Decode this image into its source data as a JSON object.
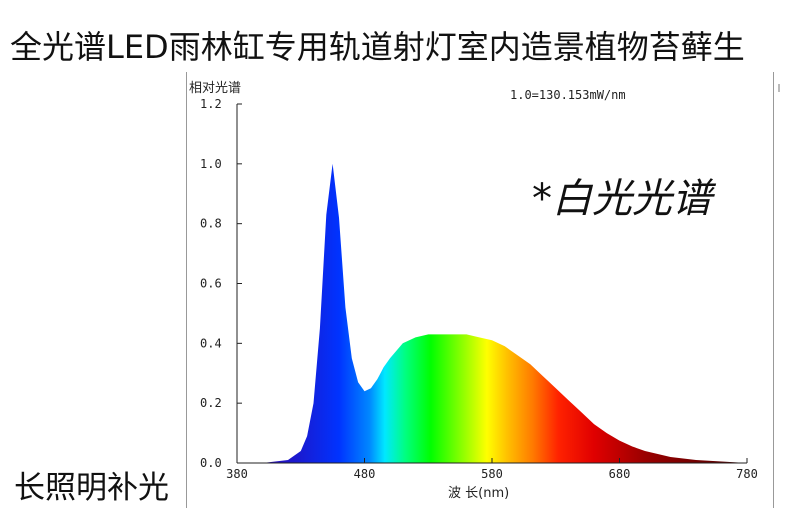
{
  "product_title": "全光谱LED雨林缸专用轨道射灯室内造景植物苔藓生",
  "product_title_cont": "长照明补光",
  "chart_data": {
    "type": "area",
    "ylabel": "相对光谱",
    "xlabel": "波 长(nm)",
    "annotation": "1.0=130.153mW/nm",
    "watermark": "*白光光谱",
    "xlim": [
      380,
      780
    ],
    "ylim": [
      0,
      1.2
    ],
    "x_ticks": [
      380,
      480,
      580,
      680,
      780
    ],
    "y_ticks": [
      0.0,
      0.2,
      0.4,
      0.6,
      0.8,
      1.0,
      1.2
    ],
    "x_tick_labels": [
      "380",
      "480",
      "580",
      "680",
      "780"
    ],
    "y_tick_labels": [
      "0.0",
      "0.2",
      "0.4",
      "0.6",
      "0.8",
      "1.0",
      "1.2"
    ],
    "grid": false,
    "series": [
      {
        "x": [
          380,
          400,
          420,
          430,
          435,
          440,
          445,
          450,
          455,
          460,
          465,
          470,
          475,
          480,
          485,
          490,
          495,
          500,
          510,
          520,
          530,
          540,
          550,
          560,
          570,
          580,
          590,
          600,
          610,
          620,
          630,
          640,
          650,
          660,
          670,
          680,
          690,
          700,
          720,
          740,
          760,
          780
        ],
        "y": [
          0.0,
          0.0,
          0.01,
          0.04,
          0.09,
          0.2,
          0.45,
          0.83,
          1.0,
          0.82,
          0.52,
          0.35,
          0.27,
          0.24,
          0.25,
          0.28,
          0.32,
          0.35,
          0.4,
          0.42,
          0.43,
          0.43,
          0.43,
          0.43,
          0.42,
          0.41,
          0.39,
          0.36,
          0.33,
          0.29,
          0.25,
          0.21,
          0.17,
          0.13,
          0.1,
          0.075,
          0.055,
          0.04,
          0.02,
          0.01,
          0.005,
          0.0
        ]
      }
    ]
  }
}
